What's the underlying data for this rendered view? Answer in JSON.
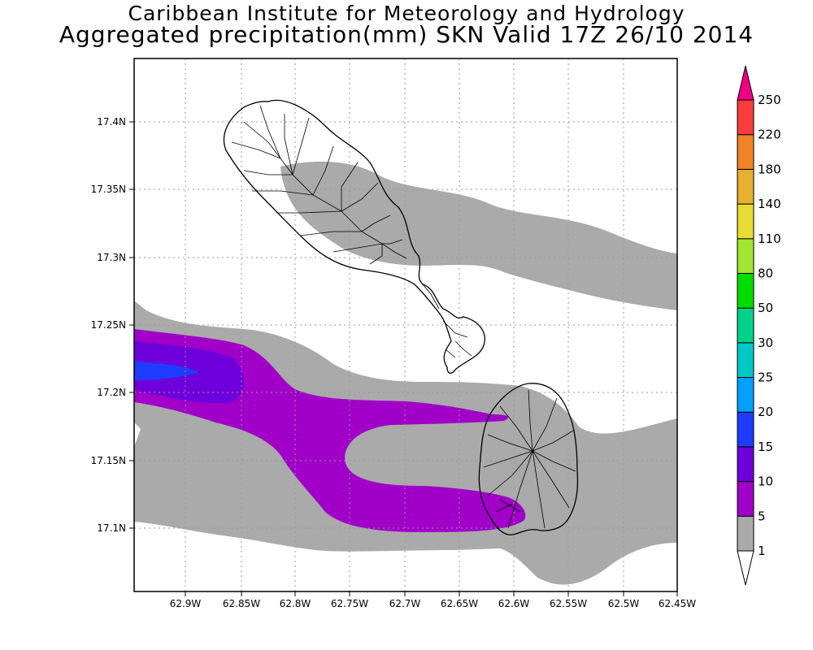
{
  "title_line1": "Caribbean Institute for Meteorology and Hydrology",
  "title_line2": "Aggregated precipitation(mm) SKN Valid 17Z 26/10 2014",
  "x_ticks": [
    "62.9W",
    "62.85W",
    "62.8W",
    "62.75W",
    "62.7W",
    "62.65W",
    "62.6W",
    "62.55W",
    "62.5W",
    "62.45W"
  ],
  "y_ticks": [
    "17.4N",
    "17.35N",
    "17.3N",
    "17.25N",
    "17.2N",
    "17.15N",
    "17.1N"
  ],
  "legend": {
    "levels": [
      "1",
      "5",
      "10",
      "15",
      "20",
      "25",
      "30",
      "50",
      "80",
      "110",
      "140",
      "180",
      "220",
      "250"
    ],
    "colors": [
      "#ffffff",
      "#aaaaaa",
      "#a000c8",
      "#6e00dc",
      "#1e3cff",
      "#00a0ff",
      "#00c8c8",
      "#00d28c",
      "#00dc00",
      "#a0e632",
      "#e6dc32",
      "#e6af2d",
      "#f08228",
      "#fa3c3c",
      "#f00082"
    ]
  },
  "islands": [
    "St. Kitts",
    "Nevis"
  ],
  "shading_colors": {
    "1-5": "#aaaaaa",
    "5-10": "#a000c8",
    "10-15": "#6e00dc",
    "15-20": "#1e3cff"
  }
}
